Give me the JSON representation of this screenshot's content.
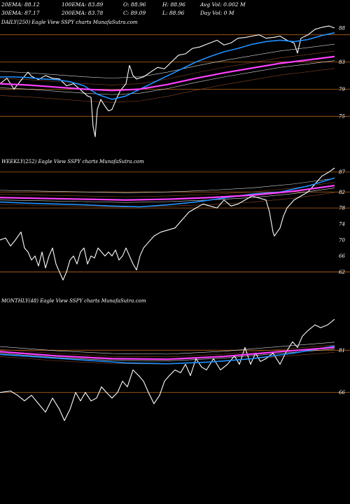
{
  "header": {
    "row1": [
      "20EMA: 88.12",
      "100EMA: 83.89",
      "O: 88.96",
      "H: 88.96",
      "Avg Vol: 0.002  M"
    ],
    "row2": [
      "30EMA: 87.17",
      "200EMA: 83.78",
      "C: 89.09",
      "L: 88.96",
      "Day Vol: 0  M"
    ]
  },
  "colors": {
    "background": "#000000",
    "price": "#ffffff",
    "level_line": "#b5651d",
    "ema_fast": "#1e90ff",
    "ema_slow": "#ff40ff",
    "ema_mid": "#ffffff",
    "ema_brown": "#a0522d"
  },
  "chart_data": [
    {
      "type": "line",
      "title": "DAILY(250) Eagle  View  SSPY charts MunafaSutra.com",
      "ylim": [
        71,
        88
      ],
      "yticks": [
        88,
        83,
        79,
        75
      ],
      "level_lines": [
        87,
        83,
        79,
        75
      ],
      "n": 250,
      "series": [
        {
          "role": "price",
          "color": "#ffffff",
          "points": [
            [
              0,
              79.8
            ],
            [
              10,
              80.6
            ],
            [
              20,
              79.0
            ],
            [
              30,
              80.3
            ],
            [
              40,
              81.5
            ],
            [
              45,
              80.9
            ],
            [
              55,
              80.4
            ],
            [
              65,
              81.0
            ],
            [
              75,
              80.6
            ],
            [
              85,
              80.5
            ],
            [
              95,
              79.5
            ],
            [
              105,
              79.8
            ],
            [
              115,
              78.9
            ],
            [
              125,
              78.0
            ],
            [
              130,
              77.8
            ],
            [
              133,
              73.5
            ],
            [
              136,
              72.0
            ],
            [
              139,
              76.0
            ],
            [
              144,
              77.5
            ],
            [
              150,
              76.5
            ],
            [
              155,
              75.8
            ],
            [
              160,
              76.0
            ],
            [
              166,
              77.5
            ],
            [
              172,
              78.8
            ],
            [
              180,
              79.8
            ],
            [
              185,
              82.5
            ],
            [
              190,
              81.0
            ],
            [
              195,
              80.5
            ],
            [
              205,
              80.8
            ],
            [
              215,
              81.5
            ],
            [
              225,
              82.2
            ],
            [
              235,
              82.0
            ],
            [
              245,
              83.0
            ],
            [
              255,
              84.0
            ],
            [
              265,
              84.2
            ],
            [
              275,
              85.0
            ],
            [
              285,
              85.2
            ],
            [
              300,
              85.8
            ],
            [
              310,
              86.2
            ],
            [
              320,
              85.5
            ],
            [
              330,
              85.8
            ],
            [
              340,
              86.5
            ],
            [
              350,
              86.6
            ],
            [
              360,
              86.8
            ],
            [
              370,
              87.0
            ],
            [
              380,
              86.5
            ],
            [
              390,
              86.6
            ],
            [
              400,
              86.8
            ],
            [
              410,
              86.2
            ],
            [
              420,
              85.8
            ],
            [
              425,
              84.3
            ],
            [
              430,
              86.5
            ],
            [
              440,
              87.0
            ],
            [
              450,
              87.8
            ],
            [
              460,
              88.1
            ],
            [
              470,
              88.3
            ],
            [
              478,
              88.0
            ]
          ]
        },
        {
          "role": "ema20",
          "color": "#1e90ff",
          "points": [
            [
              0,
              80.8
            ],
            [
              20,
              80.8
            ],
            [
              40,
              80.7
            ],
            [
              60,
              80.5
            ],
            [
              80,
              80.4
            ],
            [
              100,
              80.1
            ],
            [
              120,
              79.5
            ],
            [
              140,
              78.2
            ],
            [
              160,
              77.5
            ],
            [
              180,
              78.0
            ],
            [
              200,
              79.0
            ],
            [
              220,
              80.0
            ],
            [
              240,
              81.0
            ],
            [
              260,
              82.0
            ],
            [
              280,
              83.0
            ],
            [
              300,
              83.8
            ],
            [
              320,
              84.5
            ],
            [
              340,
              85.0
            ],
            [
              360,
              85.6
            ],
            [
              380,
              86.0
            ],
            [
              400,
              86.2
            ],
            [
              420,
              86.0
            ],
            [
              440,
              86.3
            ],
            [
              460,
              86.9
            ],
            [
              478,
              87.3
            ]
          ]
        },
        {
          "role": "ema100",
          "color": "#ff40ff",
          "points": [
            [
              0,
              79.8
            ],
            [
              40,
              79.6
            ],
            [
              80,
              79.3
            ],
            [
              120,
              79.0
            ],
            [
              160,
              78.8
            ],
            [
              200,
              79.0
            ],
            [
              240,
              79.7
            ],
            [
              280,
              80.6
            ],
            [
              320,
              81.4
            ],
            [
              360,
              82.1
            ],
            [
              400,
              82.8
            ],
            [
              440,
              83.3
            ],
            [
              478,
              83.8
            ]
          ]
        }
      ]
    },
    {
      "type": "line",
      "title": "WEEKLY(252) Eagle  View  SSPY charts MunafaSutra.com",
      "ylim": [
        60,
        88
      ],
      "yticks": [
        87,
        82,
        78,
        74,
        70,
        66,
        62
      ],
      "level_lines": [
        87,
        82,
        78,
        62
      ],
      "n": 252,
      "series": [
        {
          "role": "price",
          "color": "#ffffff",
          "points": [
            [
              0,
              70
            ],
            [
              8,
              70.5
            ],
            [
              15,
              68.5
            ],
            [
              22,
              70
            ],
            [
              30,
              72
            ],
            [
              35,
              68
            ],
            [
              40,
              67
            ],
            [
              45,
              65
            ],
            [
              50,
              66
            ],
            [
              55,
              63.5
            ],
            [
              60,
              67
            ],
            [
              65,
              63
            ],
            [
              70,
              66
            ],
            [
              75,
              68
            ],
            [
              80,
              64
            ],
            [
              85,
              62
            ],
            [
              90,
              60
            ],
            [
              95,
              62
            ],
            [
              100,
              65
            ],
            [
              105,
              66
            ],
            [
              110,
              64
            ],
            [
              115,
              67
            ],
            [
              120,
              68
            ],
            [
              125,
              64
            ],
            [
              130,
              66
            ],
            [
              135,
              65.5
            ],
            [
              140,
              68
            ],
            [
              145,
              67
            ],
            [
              150,
              66
            ],
            [
              155,
              67
            ],
            [
              160,
              66
            ],
            [
              165,
              67.5
            ],
            [
              170,
              65
            ],
            [
              175,
              66
            ],
            [
              180,
              68
            ],
            [
              185,
              66
            ],
            [
              190,
              64
            ],
            [
              195,
              62.5
            ],
            [
              200,
              66
            ],
            [
              205,
              68
            ],
            [
              210,
              69
            ],
            [
              220,
              71
            ],
            [
              230,
              72
            ],
            [
              240,
              72.5
            ],
            [
              250,
              73
            ],
            [
              260,
              75
            ],
            [
              270,
              77
            ],
            [
              280,
              78
            ],
            [
              290,
              79
            ],
            [
              300,
              78.5
            ],
            [
              310,
              78
            ],
            [
              320,
              80
            ],
            [
              330,
              78.5
            ],
            [
              340,
              79
            ],
            [
              350,
              80
            ],
            [
              360,
              81
            ],
            [
              370,
              80.5
            ],
            [
              380,
              80
            ],
            [
              385,
              77
            ],
            [
              390,
              72
            ],
            [
              392,
              71
            ],
            [
              400,
              73
            ],
            [
              405,
              76
            ],
            [
              410,
              78
            ],
            [
              420,
              80
            ],
            [
              430,
              81
            ],
            [
              440,
              82
            ],
            [
              450,
              84
            ],
            [
              460,
              86
            ],
            [
              470,
              87
            ],
            [
              478,
              88
            ]
          ]
        },
        {
          "role": "ema30",
          "color": "#1e90ff",
          "points": [
            [
              0,
              79.5
            ],
            [
              40,
              79.2
            ],
            [
              80,
              79.0
            ],
            [
              120,
              78.8
            ],
            [
              160,
              78.5
            ],
            [
              200,
              78.3
            ],
            [
              240,
              78.8
            ],
            [
              280,
              79.5
            ],
            [
              320,
              80.5
            ],
            [
              360,
              81.5
            ],
            [
              400,
              82.0
            ],
            [
              440,
              83.5
            ],
            [
              478,
              85.5
            ]
          ]
        },
        {
          "role": "ema100",
          "color": "#ff40ff",
          "points": [
            [
              0,
              80.6
            ],
            [
              60,
              80.4
            ],
            [
              120,
              80.2
            ],
            [
              180,
              80.0
            ],
            [
              240,
              80.2
            ],
            [
              300,
              80.6
            ],
            [
              360,
              81.2
            ],
            [
              420,
              82.2
            ],
            [
              478,
              83.6
            ]
          ]
        }
      ]
    },
    {
      "type": "line",
      "title": "MONTHLY(48) Eagle  View  SSPY charts MunafaSutra.com",
      "ylim": [
        50,
        96
      ],
      "yticks": [
        81,
        66
      ],
      "level_lines": [
        81,
        66
      ],
      "n": 48,
      "series": [
        {
          "role": "price",
          "color": "#ffffff",
          "points": [
            [
              0,
              66
            ],
            [
              15,
              66.5
            ],
            [
              25,
              65
            ],
            [
              35,
              63
            ],
            [
              45,
              65
            ],
            [
              55,
              62
            ],
            [
              65,
              59
            ],
            [
              75,
              64
            ],
            [
              85,
              60
            ],
            [
              92,
              56
            ],
            [
              100,
              60
            ],
            [
              108,
              66
            ],
            [
              115,
              63
            ],
            [
              122,
              66
            ],
            [
              130,
              63
            ],
            [
              138,
              64
            ],
            [
              145,
              68
            ],
            [
              152,
              66
            ],
            [
              160,
              64
            ],
            [
              168,
              66
            ],
            [
              175,
              70
            ],
            [
              182,
              68
            ],
            [
              190,
              74
            ],
            [
              198,
              72
            ],
            [
              205,
              70
            ],
            [
              212,
              66
            ],
            [
              220,
              62
            ],
            [
              228,
              65
            ],
            [
              235,
              70
            ],
            [
              242,
              72
            ],
            [
              250,
              74
            ],
            [
              258,
              73
            ],
            [
              265,
              76
            ],
            [
              272,
              72
            ],
            [
              280,
              78
            ],
            [
              288,
              75
            ],
            [
              295,
              74
            ],
            [
              305,
              78
            ],
            [
              315,
              74
            ],
            [
              325,
              76
            ],
            [
              335,
              79
            ],
            [
              342,
              76
            ],
            [
              350,
              82
            ],
            [
              358,
              76
            ],
            [
              365,
              80
            ],
            [
              372,
              77
            ],
            [
              380,
              78
            ],
            [
              390,
              80
            ],
            [
              400,
              76
            ],
            [
              408,
              80
            ],
            [
              418,
              84
            ],
            [
              425,
              82
            ],
            [
              432,
              86
            ],
            [
              440,
              88
            ],
            [
              450,
              90
            ],
            [
              458,
              89
            ],
            [
              468,
              90
            ],
            [
              478,
              92
            ]
          ]
        },
        {
          "role": "ema20",
          "color": "#1e90ff",
          "points": [
            [
              0,
              79.5
            ],
            [
              60,
              78.5
            ],
            [
              120,
              77.5
            ],
            [
              180,
              76.5
            ],
            [
              240,
              76.2
            ],
            [
              300,
              76.8
            ],
            [
              360,
              78.0
            ],
            [
              420,
              80.0
            ],
            [
              478,
              82.5
            ]
          ]
        },
        {
          "role": "ema100",
          "color": "#ff40ff",
          "points": [
            [
              0,
              80.5
            ],
            [
              80,
              79.0
            ],
            [
              160,
              78.0
            ],
            [
              240,
              77.8
            ],
            [
              320,
              78.8
            ],
            [
              400,
              80.5
            ],
            [
              478,
              82.0
            ]
          ]
        }
      ]
    }
  ]
}
